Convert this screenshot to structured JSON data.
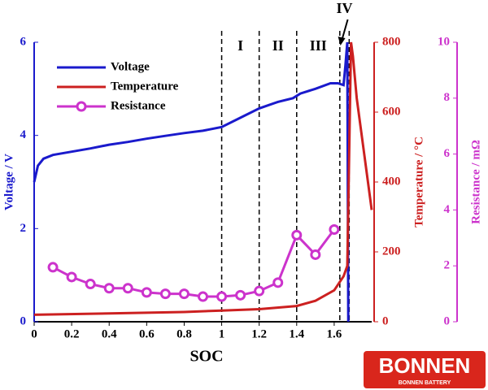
{
  "chart_data": {
    "type": "line",
    "x_label": "SOC",
    "y_label": "Voltage / V",
    "y2_label": "Temperature / °C",
    "y3_label": "Resistance / mΩ",
    "xlim": [
      0,
      1.8
    ],
    "xticks": [
      0,
      0.2,
      0.4,
      0.6,
      0.8,
      1,
      1.2,
      1.4,
      1.6
    ],
    "ylim": [
      0,
      6
    ],
    "yticks": [
      0,
      2,
      4,
      6
    ],
    "y2lim": [
      0,
      800
    ],
    "y2ticks": [
      0,
      200,
      400,
      600,
      800
    ],
    "y3lim": [
      0,
      10
    ],
    "y3ticks": [
      0,
      2,
      4,
      6,
      8,
      10
    ],
    "series": [
      {
        "name": "Voltage",
        "color": "#1a1acc",
        "axis": "y",
        "x": [
          0,
          0.02,
          0.05,
          0.1,
          0.2,
          0.3,
          0.4,
          0.5,
          0.6,
          0.7,
          0.8,
          0.9,
          1.0,
          1.1,
          1.2,
          1.3,
          1.38,
          1.42,
          1.5,
          1.58,
          1.62,
          1.65,
          1.66,
          1.67,
          1.675
        ],
        "values": [
          3.0,
          3.35,
          3.5,
          3.58,
          3.65,
          3.72,
          3.8,
          3.86,
          3.93,
          3.99,
          4.05,
          4.1,
          4.18,
          4.38,
          4.58,
          4.72,
          4.8,
          4.9,
          5.0,
          5.12,
          5.12,
          5.08,
          5.5,
          6.0,
          0
        ]
      },
      {
        "name": "Temperature",
        "color": "#cc2020",
        "axis": "y2",
        "x": [
          0,
          0.4,
          0.8,
          1.0,
          1.2,
          1.4,
          1.5,
          1.6,
          1.65,
          1.67,
          1.69,
          1.7,
          1.72,
          1.76,
          1.8
        ],
        "values": [
          20,
          24,
          28,
          32,
          36,
          45,
          60,
          90,
          130,
          160,
          800,
          760,
          640,
          480,
          320
        ]
      },
      {
        "name": "Resistance",
        "color": "#cc33cc",
        "axis": "y3",
        "markers": true,
        "x": [
          0.1,
          0.2,
          0.3,
          0.4,
          0.5,
          0.6,
          0.7,
          0.8,
          0.9,
          1.0,
          1.1,
          1.2,
          1.3,
          1.4,
          1.5,
          1.6
        ],
        "values": [
          1.95,
          1.6,
          1.35,
          1.2,
          1.2,
          1.05,
          1.0,
          1.0,
          0.9,
          0.9,
          0.95,
          1.1,
          1.4,
          3.1,
          2.4,
          3.3
        ]
      }
    ],
    "regions": [
      {
        "label": "I",
        "from": 1.0,
        "to": 1.2
      },
      {
        "label": "II",
        "from": 1.2,
        "to": 1.4
      },
      {
        "label": "III",
        "from": 1.4,
        "to": 1.63
      },
      {
        "label": "IV",
        "from": 1.63,
        "to": 1.68
      }
    ]
  },
  "logo": {
    "title": "BONNEN",
    "subtitle": "BONNEN BATTERY"
  }
}
